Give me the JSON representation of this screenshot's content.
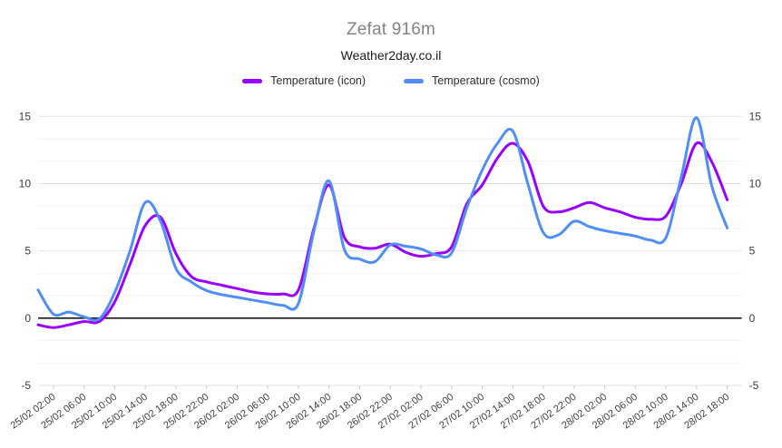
{
  "header": {
    "title": "Zefat 916m",
    "subtitle": "Weather2day.co.il"
  },
  "legend": {
    "items": [
      {
        "label": "Temperature (icon)",
        "color": "#9900ff"
      },
      {
        "label": "Temperature (cosmo)",
        "color": "#4f8ef7"
      }
    ]
  },
  "chart_data": {
    "type": "line",
    "title": "Zefat 916m",
    "subtitle": "Weather2day.co.il",
    "xlabel": "",
    "ylabel": "",
    "ylim": [
      -5,
      15
    ],
    "y_major_ticks": [
      -5,
      0,
      5,
      10,
      15
    ],
    "y_minor_step": 1.6667,
    "grid": "on",
    "zero_line": true,
    "legend_position": "top",
    "x_tick_first_index": 1,
    "x_tick_step": 2,
    "x": [
      "25/02 00:00",
      "25/02 02:00",
      "25/02 04:00",
      "25/02 06:00",
      "25/02 08:00",
      "25/02 10:00",
      "25/02 12:00",
      "25/02 14:00",
      "25/02 16:00",
      "25/02 18:00",
      "25/02 20:00",
      "25/02 22:00",
      "26/02 00:00",
      "26/02 02:00",
      "26/02 04:00",
      "26/02 06:00",
      "26/02 08:00",
      "26/02 10:00",
      "26/02 12:00",
      "26/02 14:00",
      "26/02 16:00",
      "26/02 18:00",
      "26/02 20:00",
      "26/02 22:00",
      "27/02 00:00",
      "27/02 02:00",
      "27/02 04:00",
      "27/02 06:00",
      "27/02 08:00",
      "27/02 10:00",
      "27/02 12:00",
      "27/02 14:00",
      "27/02 16:00",
      "27/02 18:00",
      "27/02 20:00",
      "27/02 22:00",
      "28/02 00:00",
      "28/02 02:00",
      "28/02 04:00",
      "28/02 06:00",
      "28/02 08:00",
      "28/02 10:00",
      "28/02 12:00",
      "28/02 14:00",
      "28/02 16:00",
      "28/02 18:00"
    ],
    "series": [
      {
        "name": "Temperature (icon)",
        "color": "#9900ff",
        "values": [
          -0.5,
          -0.7,
          -0.5,
          -0.25,
          -0.25,
          1.2,
          4.0,
          6.9,
          7.5,
          4.8,
          3.1,
          2.7,
          2.45,
          2.2,
          1.95,
          1.8,
          1.8,
          2.1,
          6.6,
          9.9,
          6.0,
          5.3,
          5.2,
          5.5,
          4.9,
          4.6,
          4.8,
          5.3,
          8.5,
          9.9,
          11.9,
          13.0,
          11.6,
          8.3,
          7.9,
          8.2,
          8.6,
          8.2,
          7.9,
          7.5,
          7.35,
          7.6,
          10.0,
          13.0,
          11.6,
          8.8
        ]
      },
      {
        "name": "Temperature (cosmo)",
        "color": "#4f8ef7",
        "values": [
          2.1,
          0.3,
          0.45,
          0.1,
          -0.05,
          1.9,
          5.0,
          8.6,
          7.2,
          3.7,
          2.7,
          2.05,
          1.75,
          1.55,
          1.35,
          1.15,
          0.95,
          1.1,
          6.4,
          10.2,
          5.1,
          4.4,
          4.2,
          5.45,
          5.35,
          5.15,
          4.7,
          4.85,
          8.2,
          11.0,
          13.0,
          13.9,
          9.9,
          6.35,
          6.2,
          7.2,
          6.8,
          6.5,
          6.3,
          6.1,
          5.8,
          6.0,
          10.5,
          14.9,
          9.8,
          6.7
        ]
      }
    ]
  },
  "colors": {
    "major_grid": "#e2e2e2",
    "minor_grid": "#f2f2f2",
    "zero_line": "#1a1a1a",
    "tick": "#c7c7c7",
    "axis_text": "#3b3b3b"
  }
}
